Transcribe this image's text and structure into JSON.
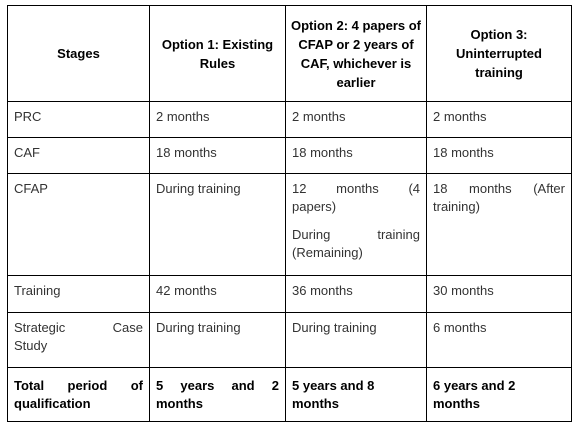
{
  "table": {
    "headers": [
      "Stages",
      "Option 1: Existing Rules",
      "Option 2: 4 papers of CFAP or 2 years of CAF, whichever is earlier",
      "Option 3: Uninterrupted training"
    ],
    "rows": [
      {
        "stage": "PRC",
        "option1": "2 months",
        "option2": "2 months",
        "option3": "2 months"
      },
      {
        "stage": "CAF",
        "option1": "18 months",
        "option2": "18 months",
        "option3": "18 months"
      },
      {
        "stage": "CFAP",
        "option1": "During training",
        "option2_part1_line1": "12 months (4",
        "option2_part1_line2": "papers)",
        "option2_part2_line1": "During training",
        "option2_part2_line2": "(Remaining)",
        "option3_line1": "18 months (After",
        "option3_line2": "training)"
      },
      {
        "stage": "Training",
        "option1": "42 months",
        "option2": "36 months",
        "option3": "30 months"
      },
      {
        "stage_line1": "Strategic Case",
        "stage_line2": "Study",
        "option1": "During training",
        "option2": "During training",
        "option3": "6 months"
      },
      {
        "stage_line1": "Total period of",
        "stage_line2": "qualification",
        "option1_line1": "5 years and 2",
        "option1_line2": "months",
        "option2_line1": "5 years and 8",
        "option2_line2": "months",
        "option3_line1": "6 years and 2",
        "option3_line2": "months"
      }
    ]
  }
}
